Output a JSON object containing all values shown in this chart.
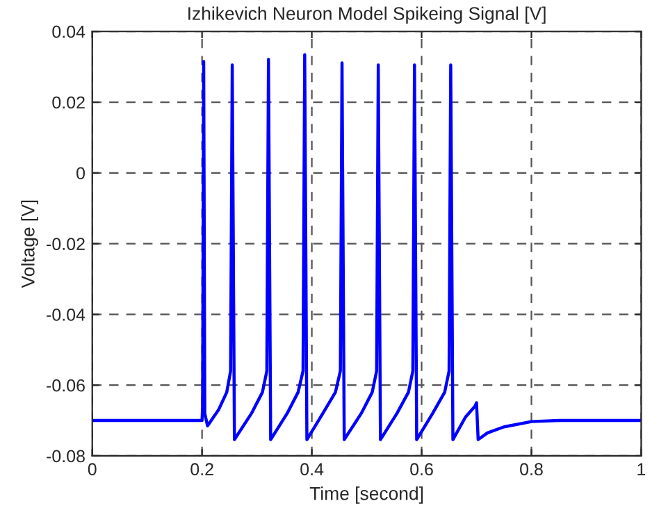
{
  "chart_data": {
    "type": "line",
    "title": "Izhikevich Neuron Model Spikeing Signal [V]",
    "xlabel": "Time [second]",
    "ylabel": "Voltage [V]",
    "series": [
      {
        "color": "#0000ff",
        "x": [
          0,
          0.2,
          0.201,
          0.203,
          0.205,
          0.21,
          0.23,
          0.245,
          0.252,
          0.255,
          0.259,
          0.29,
          0.31,
          0.318,
          0.321,
          0.325,
          0.355,
          0.375,
          0.384,
          0.387,
          0.391,
          0.42,
          0.443,
          0.452,
          0.455,
          0.459,
          0.49,
          0.51,
          0.518,
          0.521,
          0.525,
          0.555,
          0.576,
          0.584,
          0.587,
          0.591,
          0.62,
          0.642,
          0.65,
          0.653,
          0.657,
          0.68,
          0.697,
          0.7,
          0.703,
          0.72,
          0.75,
          0.8,
          0.85,
          1.0
        ],
        "values": [
          -0.07,
          -0.07,
          -0.066,
          0.0315,
          -0.068,
          -0.0715,
          -0.067,
          -0.062,
          -0.056,
          0.0305,
          -0.0754,
          -0.068,
          -0.062,
          -0.056,
          0.0321,
          -0.0754,
          -0.068,
          -0.062,
          -0.056,
          0.0334,
          -0.0754,
          -0.068,
          -0.062,
          -0.056,
          0.0311,
          -0.0754,
          -0.068,
          -0.062,
          -0.056,
          0.0305,
          -0.0754,
          -0.068,
          -0.062,
          -0.056,
          0.0305,
          -0.0754,
          -0.068,
          -0.062,
          -0.056,
          0.0305,
          -0.0754,
          -0.069,
          -0.066,
          -0.065,
          -0.0754,
          -0.0735,
          -0.0718,
          -0.0703,
          -0.07,
          -0.07
        ]
      }
    ],
    "xlim": [
      0,
      1
    ],
    "xticks": [
      0,
      0.2,
      0.4,
      0.6,
      0.8,
      1
    ],
    "ylim": [
      -0.08,
      0.04
    ],
    "yticks": [
      -0.08,
      -0.06,
      -0.04,
      -0.02,
      0,
      0.02,
      0.04
    ],
    "grid": true,
    "line_style": "solid"
  }
}
